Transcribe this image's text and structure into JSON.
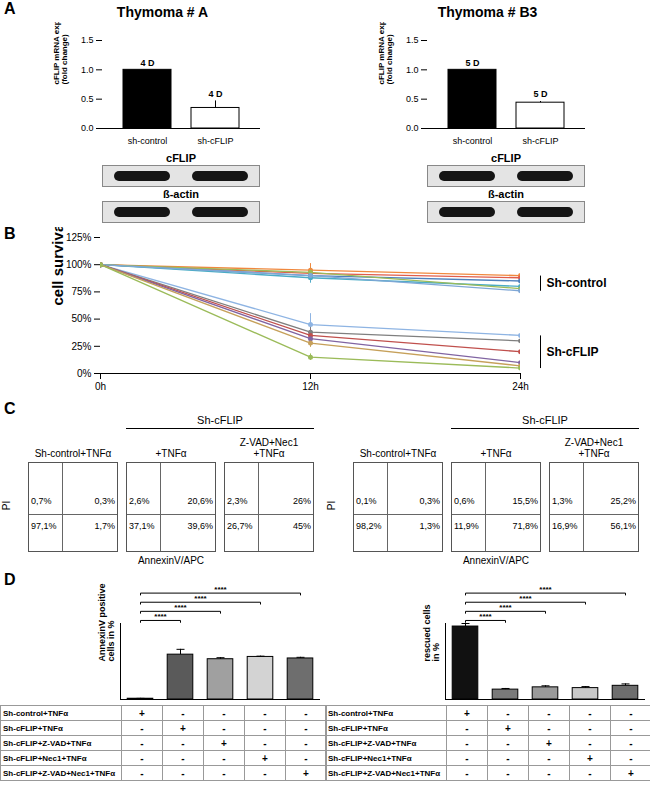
{
  "chart_data": [
    {
      "type": "bar",
      "panel": "A",
      "title": "Thymoma # A",
      "categories": [
        "sh-control",
        "sh-cFLIP"
      ],
      "values": [
        1.0,
        0.35
      ],
      "errors": [
        0,
        0.12
      ],
      "colors": [
        "#000000",
        "#ffffff"
      ],
      "bar_annotations": [
        "4 D",
        "4 D"
      ],
      "ylabel": "cFLIP mRNA expression\n(fold change)",
      "ylim": [
        0,
        1.5
      ],
      "yticks": [
        {
          "value": 0,
          "label": "0.0"
        },
        0.5,
        {
          "value": 1,
          "label": "1.0"
        },
        1.5
      ],
      "blot_rows": [
        "cFLIP",
        "ß-actin"
      ]
    },
    {
      "type": "bar",
      "title": "Thymoma # B3",
      "categories": [
        "sh-control",
        "sh-cFLIP"
      ],
      "values": [
        1.0,
        0.44
      ],
      "errors": [
        0,
        0.02
      ],
      "colors": [
        "#000000",
        "#ffffff"
      ],
      "bar_annotations": [
        "5 D",
        "5 D"
      ],
      "ylabel": "cFLIP mRNA expression\n(fold change)",
      "ylim": [
        0,
        1.5
      ],
      "yticks": [
        {
          "value": 0,
          "label": "0.0"
        },
        0.5,
        {
          "value": 1,
          "label": "1.0"
        },
        1.5
      ],
      "blot_rows": [
        "cFLIP",
        "ß-actin"
      ]
    },
    {
      "type": "line",
      "panel": "B",
      "ylabel": "cell survival",
      "marker": "circle",
      "x": [
        "0h",
        "12h",
        "24h"
      ],
      "ylim": [
        0,
        125
      ],
      "yticks": [
        {
          "value": 0,
          "label": "0%"
        },
        {
          "value": 25,
          "label": "25%"
        },
        {
          "value": 50,
          "label": "50%"
        },
        {
          "value": 75,
          "label": "75%"
        },
        {
          "value": 100,
          "label": "100%"
        },
        {
          "value": 125,
          "label": "125%"
        }
      ],
      "series": [
        {
          "group": "Sh-control",
          "color": "#f0883e",
          "values": [
            100,
            95,
            90
          ],
          "errors": [
            0,
            6,
            3
          ]
        },
        {
          "group": "Sh-control",
          "color": "#e05c4b",
          "values": [
            100,
            92,
            88
          ],
          "errors": [
            0,
            5,
            3
          ]
        },
        {
          "group": "Sh-control",
          "color": "#4f81bd",
          "values": [
            100,
            90,
            85
          ],
          "errors": [
            0,
            4,
            3
          ]
        },
        {
          "group": "Sh-control",
          "color": "#4bacc6",
          "values": [
            100,
            88,
            80
          ],
          "errors": [
            0,
            5,
            3
          ]
        },
        {
          "group": "Sh-control",
          "color": "#9bbb59",
          "values": [
            100,
            93,
            78
          ],
          "errors": [
            0,
            4,
            4
          ]
        },
        {
          "group": "Sh-control",
          "color": "#7fa7d6",
          "values": [
            100,
            90,
            76
          ],
          "errors": [
            0,
            5,
            3
          ]
        },
        {
          "group": "Sh-cFLIP",
          "color": "#8eb4e3",
          "values": [
            100,
            45,
            35
          ],
          "errors": [
            0,
            10,
            3
          ]
        },
        {
          "group": "Sh-cFLIP",
          "color": "#7f7f7f",
          "values": [
            100,
            38,
            30
          ],
          "errors": [
            0,
            6,
            3
          ]
        },
        {
          "group": "Sh-cFLIP",
          "color": "#c0504d",
          "values": [
            100,
            35,
            20
          ],
          "errors": [
            0,
            5,
            2
          ]
        },
        {
          "group": "Sh-cFLIP",
          "color": "#8064a2",
          "values": [
            100,
            32,
            10
          ],
          "errors": [
            0,
            5,
            2
          ]
        },
        {
          "group": "Sh-cFLIP",
          "color": "#c6a05a",
          "values": [
            100,
            28,
            7
          ],
          "errors": [
            0,
            4,
            2
          ]
        },
        {
          "group": "Sh-cFLIP",
          "color": "#9bbb59",
          "values": [
            100,
            15,
            5
          ],
          "errors": [
            0,
            3,
            2
          ]
        }
      ]
    },
    {
      "type": "quadrant",
      "panel": "C",
      "xlabel": "AnnexinV/APC",
      "ylabel": "PI",
      "plots": [
        {
          "title": "Sh-control+TNFα",
          "quadrants": {
            "upper_left": {
              "value": 0.7,
              "label": "0,7%"
            },
            "upper_right": {
              "value": 0.3,
              "label": "0,3%"
            },
            "lower_left": {
              "value": 97.1,
              "label": "97,1%"
            },
            "lower_right": {
              "value": 1.7,
              "label": "1,7%"
            }
          }
        }
      ],
      "group": {
        "label": "Sh-cFLIP",
        "plots": [
          {
            "title": "+TNFα",
            "quadrants": {
              "upper_left": {
                "value": 2.6,
                "label": "2,6%"
              },
              "upper_right": {
                "value": 20.6,
                "label": "20,6%"
              },
              "lower_left": {
                "value": 37.1,
                "label": "37,1%"
              },
              "lower_right": {
                "value": 39.6,
                "label": "39,6%"
              }
            }
          },
          {
            "title": "Z-VAD+Nec1\n+TNFα",
            "quadrants": {
              "upper_left": {
                "value": 2.3,
                "label": "2,3%"
              },
              "upper_right": {
                "value": 26,
                "label": "26%"
              },
              "lower_left": {
                "value": 26.7,
                "label": "26,7%"
              },
              "lower_right": {
                "value": 45,
                "label": "45%"
              }
            }
          }
        ]
      }
    },
    {
      "type": "quadrant",
      "xlabel": "AnnexinV/APC",
      "ylabel": "PI",
      "plots": [
        {
          "title": "Sh-control+TNFα",
          "quadrants": {
            "upper_left": {
              "value": 0.1,
              "label": "0,1%"
            },
            "upper_right": {
              "value": 0.3,
              "label": "0,3%"
            },
            "lower_left": {
              "value": 98.2,
              "label": "98,2%"
            },
            "lower_right": {
              "value": 1.3,
              "label": "1,3%"
            }
          }
        }
      ],
      "group": {
        "label": "Sh-cFLIP",
        "plots": [
          {
            "title": "+TNFα",
            "quadrants": {
              "upper_left": {
                "value": 0.6,
                "label": "0,6%"
              },
              "upper_right": {
                "value": 15.5,
                "label": "15,5%"
              },
              "lower_left": {
                "value": 11.9,
                "label": "11,9%"
              },
              "lower_right": {
                "value": 71.8,
                "label": "71,8%"
              }
            }
          },
          {
            "title": "Z-VAD+Nec1\n+TNFα",
            "quadrants": {
              "upper_left": {
                "value": 1.3,
                "label": "1,3%"
              },
              "upper_right": {
                "value": 25.2,
                "label": "25,2%"
              },
              "lower_left": {
                "value": 16.9,
                "label": "16,9%"
              },
              "lower_right": {
                "value": 56.1,
                "label": "56,1%"
              }
            }
          }
        ]
      }
    },
    {
      "type": "bar",
      "panel": "D",
      "ylabel": "AnnexinV positive\ncells in %",
      "values": [
        1,
        59,
        53,
        56,
        54
      ],
      "errors": [
        0.5,
        7,
        2,
        1,
        1.5
      ],
      "colors": [
        "#222222",
        "#5a5a5a",
        "#a0a0a0",
        "#d3d3d3",
        "#6e6e6e"
      ],
      "ylim": [
        0,
        100
      ],
      "tick_labels": false,
      "significance": [
        {
          "from": "Sh-control+TNFα",
          "to": "Sh-cFLIP+TNFα",
          "label": "****"
        },
        {
          "from": "Sh-control+TNFα",
          "to": "Sh-cFLIP+Z-VAD+TNFα",
          "label": "****"
        },
        {
          "from": "Sh-control+TNFα",
          "to": "Sh-cFLIP+Nec1+TNFα",
          "label": "****"
        },
        {
          "from": "Sh-control+TNFα",
          "to": "Sh-cFLIP+Z-VAD+Nec1+TNFα",
          "label": "****"
        }
      ],
      "table_rows": [
        {
          "label": "Sh-control+TNFα",
          "cells": [
            "+",
            "-",
            "-",
            "-",
            "-"
          ]
        },
        {
          "label": "Sh-cFLIP+TNFα",
          "cells": [
            "-",
            "+",
            "-",
            "-",
            "-"
          ]
        },
        {
          "label": "Sh-cFLIP+Z-VAD+TNFα",
          "cells": [
            "-",
            "-",
            "+",
            "-",
            "-"
          ]
        },
        {
          "label": "Sh-cFLIP+Nec1+TNFα",
          "cells": [
            "-",
            "-",
            "-",
            "+",
            "-"
          ]
        },
        {
          "label": "Sh-cFLIP+Z-VAD+Nec1+TNFα",
          "cells": [
            "-",
            "-",
            "-",
            "-",
            "+"
          ]
        }
      ]
    },
    {
      "type": "bar",
      "ylabel": "rescued cells\nin %",
      "values": [
        96,
        13,
        16,
        15,
        18
      ],
      "errors": [
        4,
        1.5,
        2,
        2,
        2.5
      ],
      "colors": [
        "#111111",
        "#7a7a7a",
        "#9a9a9a",
        "#c8c8c8",
        "#6e6e6e"
      ],
      "ylim": [
        0,
        100
      ],
      "tick_labels": false,
      "significance": [
        {
          "from": "Sh-control+TNFα",
          "to": "Sh-cFLIP+TNFα",
          "label": "****"
        },
        {
          "from": "Sh-control+TNFα",
          "to": "Sh-cFLIP+Z-VAD+TNFα",
          "label": "****"
        },
        {
          "from": "Sh-control+TNFα",
          "to": "Sh-cFLIP+Nec1+TNFα",
          "label": "****"
        },
        {
          "from": "Sh-control+TNFα",
          "to": "Sh-cFLIP+Z-VAD+Nec1+TNFα",
          "label": "****"
        }
      ],
      "table_rows": [
        {
          "label": "Sh-control+TNFα",
          "cells": [
            "+",
            "-",
            "-",
            "-",
            "-"
          ]
        },
        {
          "label": "Sh-cFLIP+TNFα",
          "cells": [
            "-",
            "+",
            "-",
            "-",
            "-"
          ]
        },
        {
          "label": "Sh-cFLIP+Z-VAD+TNFα",
          "cells": [
            "-",
            "-",
            "+",
            "-",
            "-"
          ]
        },
        {
          "label": "Sh-cFLIP+Nec1+TNFα",
          "cells": [
            "-",
            "-",
            "-",
            "+",
            "-"
          ]
        },
        {
          "label": "Sh-cFLIP+Z-VAD+Nec1+TNFα",
          "cells": [
            "-",
            "-",
            "-",
            "-",
            "+"
          ]
        }
      ]
    }
  ]
}
